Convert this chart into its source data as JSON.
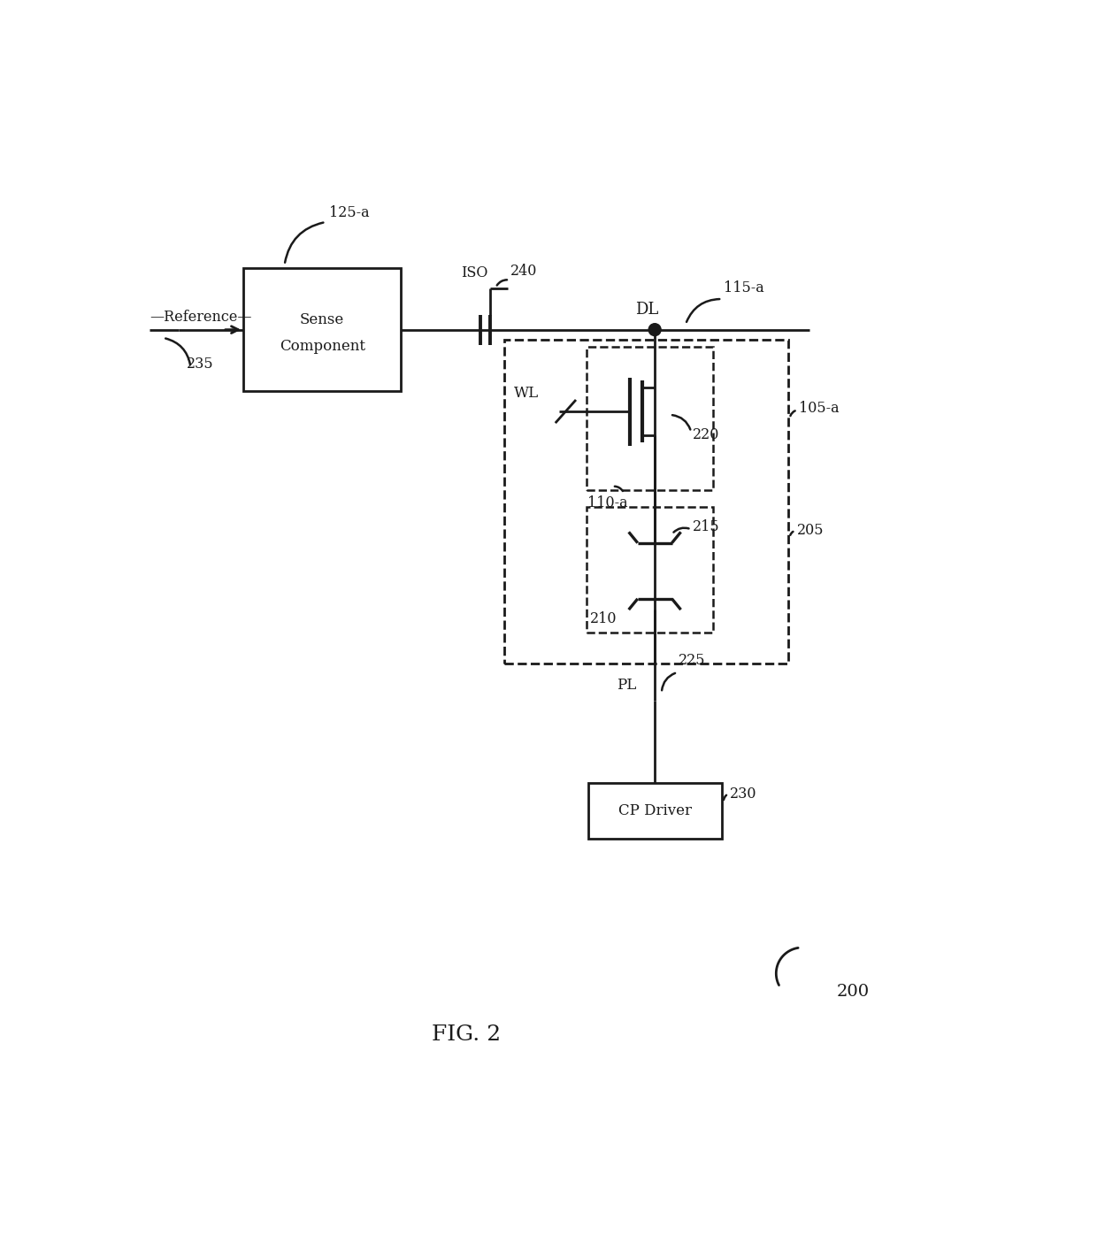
{
  "fig_label": "FIG. 2",
  "fig_number": "200",
  "bg_color": "#ffffff",
  "line_color": "#1a1a1a",
  "labels": {
    "125a": "125-a",
    "ISO": "ISO",
    "240": "240",
    "DL": "DL",
    "115a": "115-a",
    "sense_comp_line1": "Sense",
    "sense_comp_line2": "Component",
    "reference": "—Reference—",
    "235": "235",
    "WL": "WL",
    "110a": "110-a",
    "220": "220",
    "215": "215",
    "205": "205",
    "210": "210",
    "105a": "105-a",
    "PL": "PL",
    "225": "225",
    "CP_Driver": "CP Driver",
    "230": "230"
  }
}
